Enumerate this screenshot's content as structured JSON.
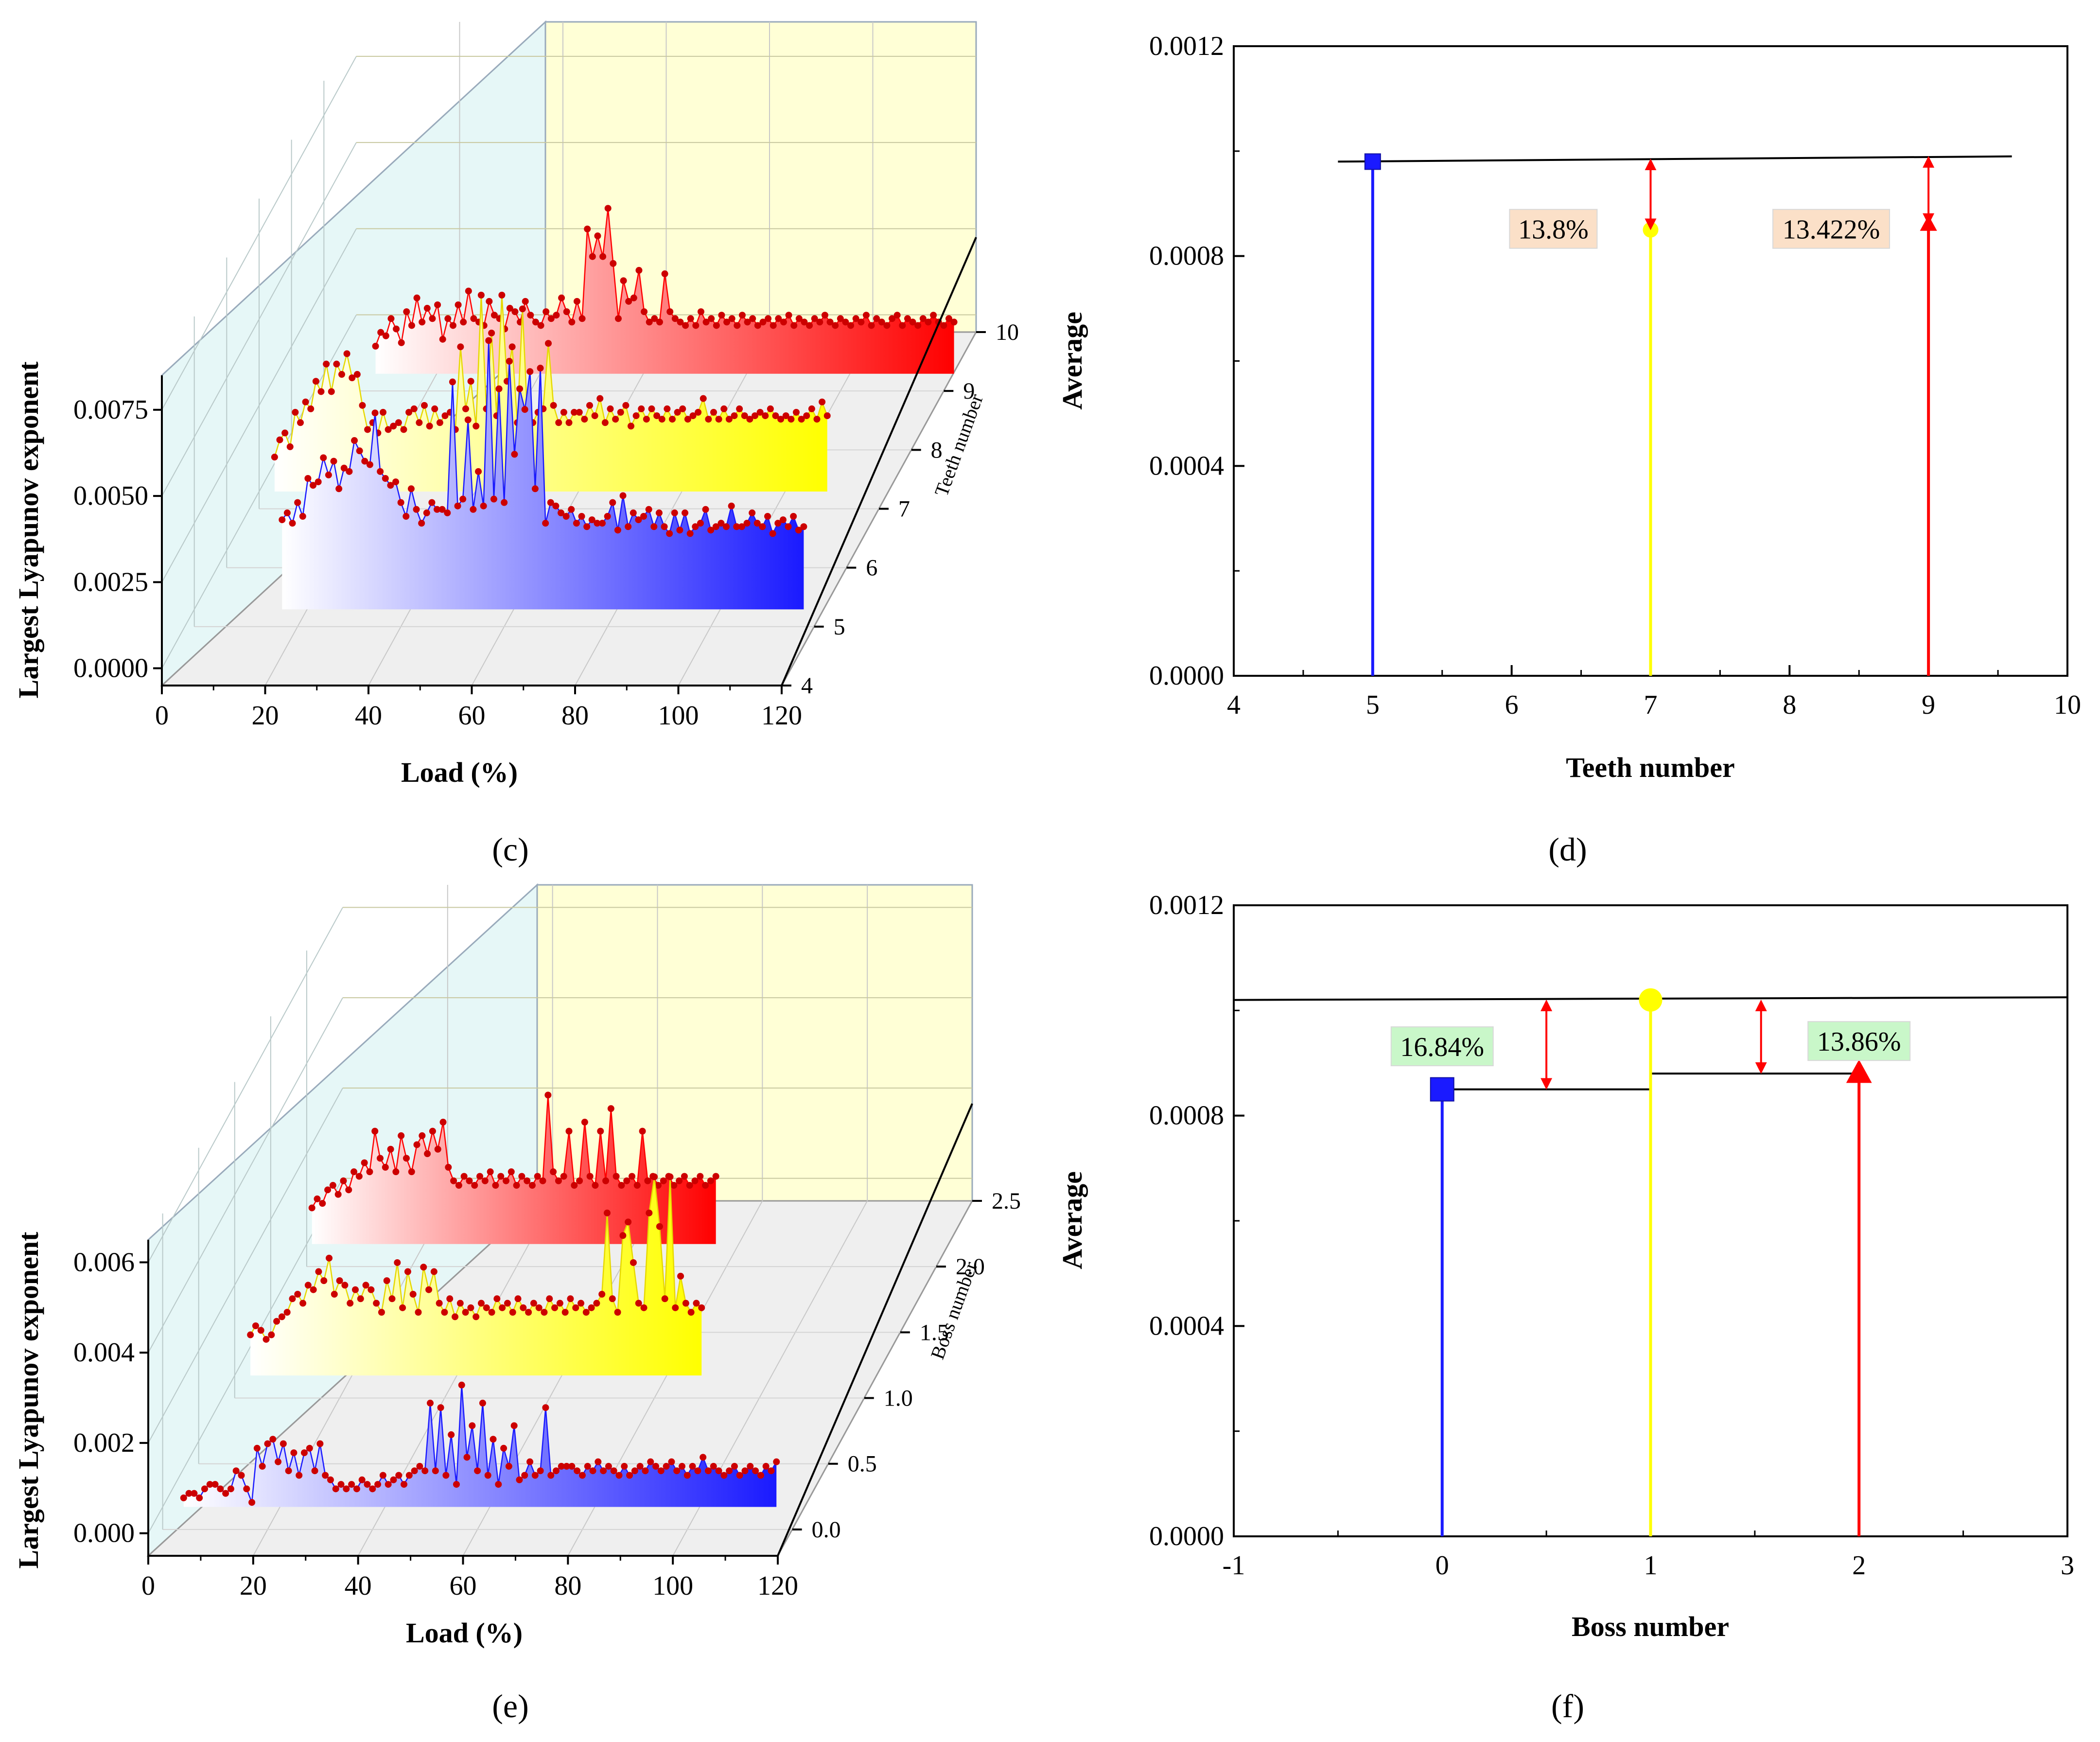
{
  "colors": {
    "blue": "#1a1aff",
    "yellow": "#ffff00",
    "red": "#ff0000",
    "marker": "#cc0000",
    "wall_left": "#e6f7f7",
    "wall_back": "#ffffd6",
    "floor": "#efefef",
    "pct_box_d": "#fbe0c8",
    "pct_box_f": "#c9f7c9"
  },
  "panels": {
    "c": {
      "label": "(c)",
      "xlabel": "Load (%)",
      "ylabel": "Largest Lyapunov exponent",
      "zlabel": "Teeth number",
      "xticks": [
        "0",
        "20",
        "40",
        "60",
        "80",
        "100",
        "120"
      ],
      "yticks": [
        "0.0000",
        "0.0025",
        "0.0050",
        "0.0075"
      ],
      "zticks": [
        "4",
        "5",
        "6",
        "7",
        "8",
        "9",
        "10"
      ]
    },
    "d": {
      "label": "(d)",
      "xlabel": "Teeth number",
      "ylabel": "Average",
      "xticks": [
        "4",
        "5",
        "6",
        "7",
        "8",
        "9",
        "10"
      ],
      "yticks": [
        "0.0000",
        "0.0004",
        "0.0008",
        "0.0012"
      ],
      "annotations": [
        "13.8%",
        "13.422%"
      ]
    },
    "e": {
      "label": "(e)",
      "xlabel": "Load (%)",
      "ylabel": "Largest Lyapunov exponent",
      "zlabel": "Boss number",
      "xticks": [
        "0",
        "20",
        "40",
        "60",
        "80",
        "100",
        "120"
      ],
      "yticks": [
        "0.000",
        "0.002",
        "0.004",
        "0.006"
      ],
      "zticks": [
        "0.0",
        "0.5",
        "1.0",
        "1.5",
        "2.0",
        "2.5"
      ]
    },
    "f": {
      "label": "(f)",
      "xlabel": "Boss number",
      "ylabel": "Average",
      "xticks": [
        "-1",
        "0",
        "1",
        "2",
        "3"
      ],
      "yticks": [
        "0.0000",
        "0.0004",
        "0.0008",
        "0.0012"
      ],
      "annotations": [
        "16.84%",
        "13.86%"
      ]
    }
  },
  "chart_data": [
    {
      "panel": "c",
      "type": "area",
      "title": "",
      "xlabel": "Load (%)",
      "ylabel": "Largest Lyapunov exponent",
      "zlabel": "Teeth number",
      "xlim": [
        0,
        120
      ],
      "ylim": [
        -0.0005,
        0.0085
      ],
      "zlim": [
        4,
        10
      ],
      "series": [
        {
          "name": "Teeth 5",
          "z": 5,
          "color": "blue",
          "x_start": 17,
          "x_step": 1,
          "values": [
            0.0026,
            0.0028,
            0.0025,
            0.0031,
            0.0027,
            0.0038,
            0.0036,
            0.0037,
            0.0044,
            0.0039,
            0.0043,
            0.0035,
            0.0041,
            0.004,
            0.0049,
            0.0046,
            0.0043,
            0.0042,
            0.0057,
            0.004,
            0.0038,
            0.0036,
            0.0037,
            0.0031,
            0.0027,
            0.0035,
            0.0029,
            0.0025,
            0.0028,
            0.0031,
            0.0029,
            0.0029,
            0.0028,
            0.0066,
            0.003,
            0.0032,
            0.0055,
            0.0029,
            0.004,
            0.003,
            0.0078,
            0.0032,
            0.0064,
            0.0031,
            0.0072,
            0.0045,
            0.0064,
            0.0058,
            0.0069,
            0.0035,
            0.007,
            0.0025,
            0.0031,
            0.003,
            0.0028,
            0.0027,
            0.0029,
            0.0025,
            0.0027,
            0.0024,
            0.0026,
            0.0025,
            0.0025,
            0.0027,
            0.0031,
            0.0023,
            0.0033,
            0.0024,
            0.0028,
            0.0026,
            0.0027,
            0.0029,
            0.0024,
            0.0028,
            0.0024,
            0.0022,
            0.0028,
            0.0023,
            0.0028,
            0.0022,
            0.0024,
            0.0025,
            0.0029,
            0.0023,
            0.0024,
            0.0025,
            0.0024,
            0.003,
            0.0024,
            0.0024,
            0.0025,
            0.0028,
            0.0025,
            0.0024,
            0.0027,
            0.0022,
            0.0025,
            0.0026,
            0.0024,
            0.0027,
            0.0023,
            0.0024
          ]
        },
        {
          "name": "Teeth 7",
          "z": 7,
          "color": "yellow",
          "x_start": 3,
          "x_step": 1,
          "values": [
            0.001,
            0.0015,
            0.0017,
            0.0013,
            0.0023,
            0.002,
            0.0026,
            0.0024,
            0.0032,
            0.0029,
            0.0037,
            0.0029,
            0.0037,
            0.0034,
            0.004,
            0.0033,
            0.0034,
            0.0025,
            0.0018,
            0.002,
            0.0017,
            0.0023,
            0.0018,
            0.0019,
            0.002,
            0.0018,
            0.0023,
            0.0024,
            0.002,
            0.0025,
            0.0019,
            0.0024,
            0.002,
            0.0022,
            0.0023,
            0.0018,
            0.0042,
            0.0024,
            0.0032,
            0.0019,
            0.0057,
            0.0024,
            0.0046,
            0.0022,
            0.0057,
            0.0032,
            0.0042,
            0.002,
            0.0053,
            0.002,
            0.002,
            0.0023,
            0.0024,
            0.0043,
            0.0025,
            0.002,
            0.0023,
            0.002,
            0.0023,
            0.0023,
            0.0021,
            0.0025,
            0.0022,
            0.0027,
            0.002,
            0.0024,
            0.0021,
            0.0023,
            0.0025,
            0.0019,
            0.0022,
            0.0024,
            0.0021,
            0.0024,
            0.0022,
            0.0021,
            0.0024,
            0.0021,
            0.0023,
            0.0024,
            0.0021,
            0.0022,
            0.0023,
            0.0027,
            0.0021,
            0.0023,
            0.0021,
            0.0024,
            0.0021,
            0.0022,
            0.0024,
            0.0022,
            0.0021,
            0.0022,
            0.0023,
            0.0022,
            0.0024,
            0.0022,
            0.0021,
            0.0022,
            0.0021,
            0.0023,
            0.0021,
            0.0022,
            0.0024,
            0.0021,
            0.0026,
            0.0022
          ]
        },
        {
          "name": "Teeth 9",
          "z": 9,
          "color": "red",
          "x_start": 10,
          "x_step": 1,
          "values": [
            0.0008,
            0.0012,
            0.0011,
            0.0016,
            0.0013,
            0.0009,
            0.0018,
            0.0014,
            0.0022,
            0.0015,
            0.0019,
            0.0016,
            0.002,
            0.001,
            0.0016,
            0.0014,
            0.002,
            0.0015,
            0.0024,
            0.0016,
            0.0015,
            0.0014,
            0.0021,
            0.0017,
            0.0016,
            0.0013,
            0.0019,
            0.0018,
            0.0015,
            0.0021,
            0.0017,
            0.0015,
            0.0014,
            0.0018,
            0.0016,
            0.0017,
            0.0022,
            0.0018,
            0.0015,
            0.0021,
            0.0016,
            0.0042,
            0.0034,
            0.004,
            0.0034,
            0.0048,
            0.0032,
            0.0016,
            0.0027,
            0.0021,
            0.0022,
            0.003,
            0.0018,
            0.0015,
            0.0016,
            0.0015,
            0.0029,
            0.0018,
            0.0016,
            0.0015,
            0.0014,
            0.0016,
            0.0014,
            0.0018,
            0.0015,
            0.0016,
            0.0014,
            0.0017,
            0.0015,
            0.0016,
            0.0014,
            0.0017,
            0.0015,
            0.0016,
            0.0014,
            0.0015,
            0.0016,
            0.0014,
            0.0016,
            0.0015,
            0.0017,
            0.0014,
            0.0016,
            0.0015,
            0.0014,
            0.0016,
            0.0015,
            0.0017,
            0.0015,
            0.0014,
            0.0016,
            0.0015,
            0.0014,
            0.0016,
            0.0015,
            0.0017,
            0.0014,
            0.0016,
            0.0015,
            0.0014,
            0.0016,
            0.0017,
            0.0014,
            0.0016,
            0.0015,
            0.0014,
            0.0016,
            0.0015,
            0.0017,
            0.0015,
            0.0014,
            0.0016,
            0.0015
          ]
        }
      ]
    },
    {
      "panel": "d",
      "type": "scatter",
      "title": "",
      "xlabel": "Teeth number",
      "ylabel": "Average",
      "xlim": [
        4,
        10
      ],
      "ylim": [
        0,
        0.0012
      ],
      "series": [
        {
          "name": "Teeth 5",
          "color": "blue",
          "marker": "square",
          "x": [
            5
          ],
          "y": [
            0.00098
          ]
        },
        {
          "name": "Teeth 7",
          "color": "yellow",
          "marker": "circle",
          "x": [
            7
          ],
          "y": [
            0.00085
          ]
        },
        {
          "name": "Teeth 9",
          "color": "red",
          "marker": "triangle",
          "x": [
            9
          ],
          "y": [
            0.00086
          ]
        }
      ],
      "reference_line": {
        "x": [
          4.75,
          9.6
        ],
        "y": [
          0.00098,
          0.00099
        ]
      },
      "arrows": [
        {
          "x": 7,
          "from": 0.00085,
          "to": 0.000985,
          "label": "13.8%",
          "label_x": 6.3,
          "label_y": 0.00085
        },
        {
          "x": 9,
          "from": 0.00086,
          "to": 0.00099,
          "label": "13.422%",
          "label_x": 8.3,
          "label_y": 0.00085
        }
      ]
    },
    {
      "panel": "e",
      "type": "area",
      "title": "",
      "xlabel": "Load (%)",
      "ylabel": "Largest Lyapunov exponent",
      "zlabel": "Boss number",
      "xlim": [
        0,
        120
      ],
      "ylim": [
        -0.0005,
        0.0065
      ],
      "zlim": [
        -0.2,
        2.5
      ],
      "series": [
        {
          "name": "Boss 0",
          "z": 0,
          "color": "blue",
          "x_start": 4,
          "x_step": 1,
          "values": [
            0.0002,
            0.0003,
            0.0003,
            0.0002,
            0.0004,
            0.0005,
            0.0005,
            0.0004,
            0.0003,
            0.0004,
            0.0008,
            0.0007,
            0.0004,
            0.0001,
            0.0013,
            0.0009,
            0.0014,
            0.0015,
            0.001,
            0.0014,
            0.0008,
            0.0012,
            0.0007,
            0.0012,
            0.0013,
            0.0008,
            0.0014,
            0.0007,
            0.0006,
            0.0004,
            0.0005,
            0.0004,
            0.0005,
            0.0004,
            0.0006,
            0.0005,
            0.0004,
            0.0005,
            0.0007,
            0.0005,
            0.0006,
            0.0007,
            0.0005,
            0.0007,
            0.0008,
            0.0009,
            0.0008,
            0.0023,
            0.0008,
            0.0022,
            0.0007,
            0.0016,
            0.0005,
            0.0027,
            0.0011,
            0.0018,
            0.0008,
            0.0023,
            0.0007,
            0.0015,
            0.0005,
            0.0013,
            0.0009,
            0.0018,
            0.0006,
            0.0007,
            0.001,
            0.0007,
            0.0008,
            0.0022,
            0.0007,
            0.0008,
            0.0009,
            0.0009,
            0.0009,
            0.0008,
            0.0007,
            0.0009,
            0.0008,
            0.001,
            0.0008,
            0.0009,
            0.0008,
            0.0007,
            0.0009,
            0.0007,
            0.0008,
            0.0009,
            0.0008,
            0.001,
            0.0009,
            0.0008,
            0.0009,
            0.001,
            0.0008,
            0.0009,
            0.0007,
            0.0009,
            0.0008,
            0.0011,
            0.0008,
            0.0009,
            0.0008,
            0.0007,
            0.0008,
            0.0009,
            0.0007,
            0.0008,
            0.0009,
            0.0008,
            0.0007,
            0.0009,
            0.0008,
            0.001
          ]
        },
        {
          "name": "Boss 1",
          "z": 1,
          "color": "yellow",
          "x_start": 3,
          "x_step": 1,
          "values": [
            0.0009,
            0.0011,
            0.001,
            0.0008,
            0.0009,
            0.0012,
            0.0013,
            0.0014,
            0.0017,
            0.0018,
            0.0016,
            0.002,
            0.0019,
            0.0023,
            0.0021,
            0.0026,
            0.0018,
            0.0021,
            0.002,
            0.0016,
            0.0019,
            0.0017,
            0.002,
            0.0019,
            0.0016,
            0.0014,
            0.0021,
            0.0017,
            0.0025,
            0.0015,
            0.0023,
            0.0018,
            0.0014,
            0.0024,
            0.0019,
            0.0023,
            0.0016,
            0.0014,
            0.0017,
            0.0013,
            0.0016,
            0.0014,
            0.0015,
            0.0013,
            0.0016,
            0.0015,
            0.0014,
            0.0017,
            0.0015,
            0.0016,
            0.0014,
            0.0017,
            0.0015,
            0.0014,
            0.0016,
            0.0015,
            0.0014,
            0.0017,
            0.0015,
            0.0016,
            0.0014,
            0.0017,
            0.0015,
            0.0016,
            0.0014,
            0.0015,
            0.0016,
            0.0018,
            0.0036,
            0.0017,
            0.0014,
            0.0031,
            0.0034,
            0.0025,
            0.0016,
            0.0015,
            0.0036,
            0.0044,
            0.0033,
            0.0017,
            0.0044,
            0.0015,
            0.0022,
            0.0016,
            0.0014,
            0.0016,
            0.0015
          ]
        },
        {
          "name": "Boss 2",
          "z": 2,
          "color": "red",
          "x_start": 1,
          "x_step": 1,
          "values": [
            0.0008,
            0.001,
            0.0009,
            0.0012,
            0.0013,
            0.0011,
            0.0014,
            0.0012,
            0.0016,
            0.0015,
            0.0018,
            0.0016,
            0.0025,
            0.0019,
            0.0017,
            0.0021,
            0.0016,
            0.0024,
            0.0019,
            0.0016,
            0.0022,
            0.0024,
            0.002,
            0.0025,
            0.0021,
            0.0027,
            0.0017,
            0.0014,
            0.0013,
            0.0015,
            0.0014,
            0.0013,
            0.0015,
            0.0014,
            0.0016,
            0.0013,
            0.0015,
            0.0014,
            0.0016,
            0.0013,
            0.0015,
            0.0014,
            0.0013,
            0.0015,
            0.0014,
            0.0033,
            0.0016,
            0.0014,
            0.0015,
            0.0025,
            0.0013,
            0.0014,
            0.0027,
            0.0015,
            0.0013,
            0.0025,
            0.0014,
            0.003,
            0.0015,
            0.0013,
            0.0014,
            0.0015,
            0.0013,
            0.0025,
            0.0014,
            0.0015,
            0.0013,
            0.0014,
            0.0015,
            0.0013,
            0.0014,
            0.0015,
            0.0013,
            0.0014,
            0.0015,
            0.0013,
            0.0014,
            0.0015
          ]
        }
      ]
    },
    {
      "panel": "f",
      "type": "scatter",
      "title": "",
      "xlabel": "Boss number",
      "ylabel": "Average",
      "xlim": [
        -1,
        3
      ],
      "ylim": [
        0,
        0.0012
      ],
      "series": [
        {
          "name": "Boss 0",
          "color": "blue",
          "marker": "square",
          "x": [
            0
          ],
          "y": [
            0.00085
          ]
        },
        {
          "name": "Boss 1",
          "color": "yellow",
          "marker": "circle",
          "x": [
            1
          ],
          "y": [
            0.00102
          ]
        },
        {
          "name": "Boss 2",
          "color": "red",
          "marker": "triangle",
          "x": [
            2
          ],
          "y": [
            0.00088
          ]
        }
      ],
      "reference_line": {
        "x": [
          -1,
          3
        ],
        "y": [
          0.00102,
          0.001025
        ]
      },
      "step_lines": [
        {
          "x": [
            0,
            1
          ],
          "y": [
            0.00085,
            0.00085
          ]
        },
        {
          "x": [
            1,
            2
          ],
          "y": [
            0.00088,
            0.00088
          ]
        }
      ],
      "arrows": [
        {
          "x": 0.5,
          "from": 0.00085,
          "to": 0.00102,
          "label": "16.84%",
          "label_x": 0.0,
          "label_y": 0.00093
        },
        {
          "x": 1.53,
          "from": 0.00088,
          "to": 0.00102,
          "label": "13.86%",
          "label_x": 2.0,
          "label_y": 0.00094
        }
      ]
    }
  ]
}
